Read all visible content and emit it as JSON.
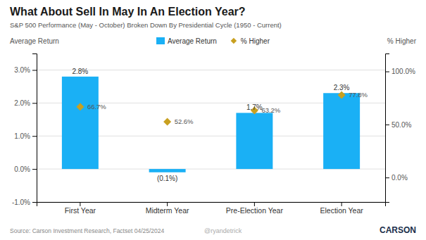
{
  "chart_data": {
    "type": "bar",
    "title": "What About Sell In May In An Election Year?",
    "subtitle": "S&P 500 Performance (May - October) Broken Down By Presidential Cycle (1950 - Current)",
    "categories": [
      "First Year",
      "Midterm Year",
      "Pre-Election Year",
      "Election Year"
    ],
    "series": [
      {
        "name": "Average Return",
        "type": "bar",
        "color": "#1ab0f5",
        "values": [
          2.8,
          -0.1,
          1.7,
          2.3
        ],
        "value_labels": [
          "2.8%",
          "(0.1%)",
          "1.7%",
          "2.3%"
        ],
        "data_labels": true
      },
      {
        "name": "% Higher",
        "type": "scatter",
        "marker": "diamond",
        "color": "#c8a020",
        "axis": "y2",
        "values": [
          66.7,
          52.6,
          63.2,
          77.8
        ],
        "value_labels": [
          "66.7%",
          "52.6%",
          "63.2%",
          "77.8%"
        ],
        "data_labels": true
      }
    ],
    "ylabel": "Average Return",
    "y2label": "% Higher",
    "ylim": [
      -1.0,
      3.5
    ],
    "yticks": [
      {
        "value": -1.0,
        "label": "-1.0%"
      },
      {
        "value": 0.0,
        "label": "0.0%"
      },
      {
        "value": 1.0,
        "label": "1.0%"
      },
      {
        "value": 2.0,
        "label": "2.0%"
      },
      {
        "value": 3.0,
        "label": "3.0%"
      }
    ],
    "y2lim": [
      -23.08,
      116.92
    ],
    "y2ticks": [
      {
        "value": 0.0,
        "label": "0.0%"
      },
      {
        "value": 50.0,
        "label": "50.0%"
      },
      {
        "value": 100.0,
        "label": "100.0%"
      }
    ],
    "grid": true,
    "legend": "top",
    "annotations": [
      "Source: Carson Investment Research, Factset 04/25/2024",
      "@ryandetrick",
      "CARSON"
    ]
  }
}
